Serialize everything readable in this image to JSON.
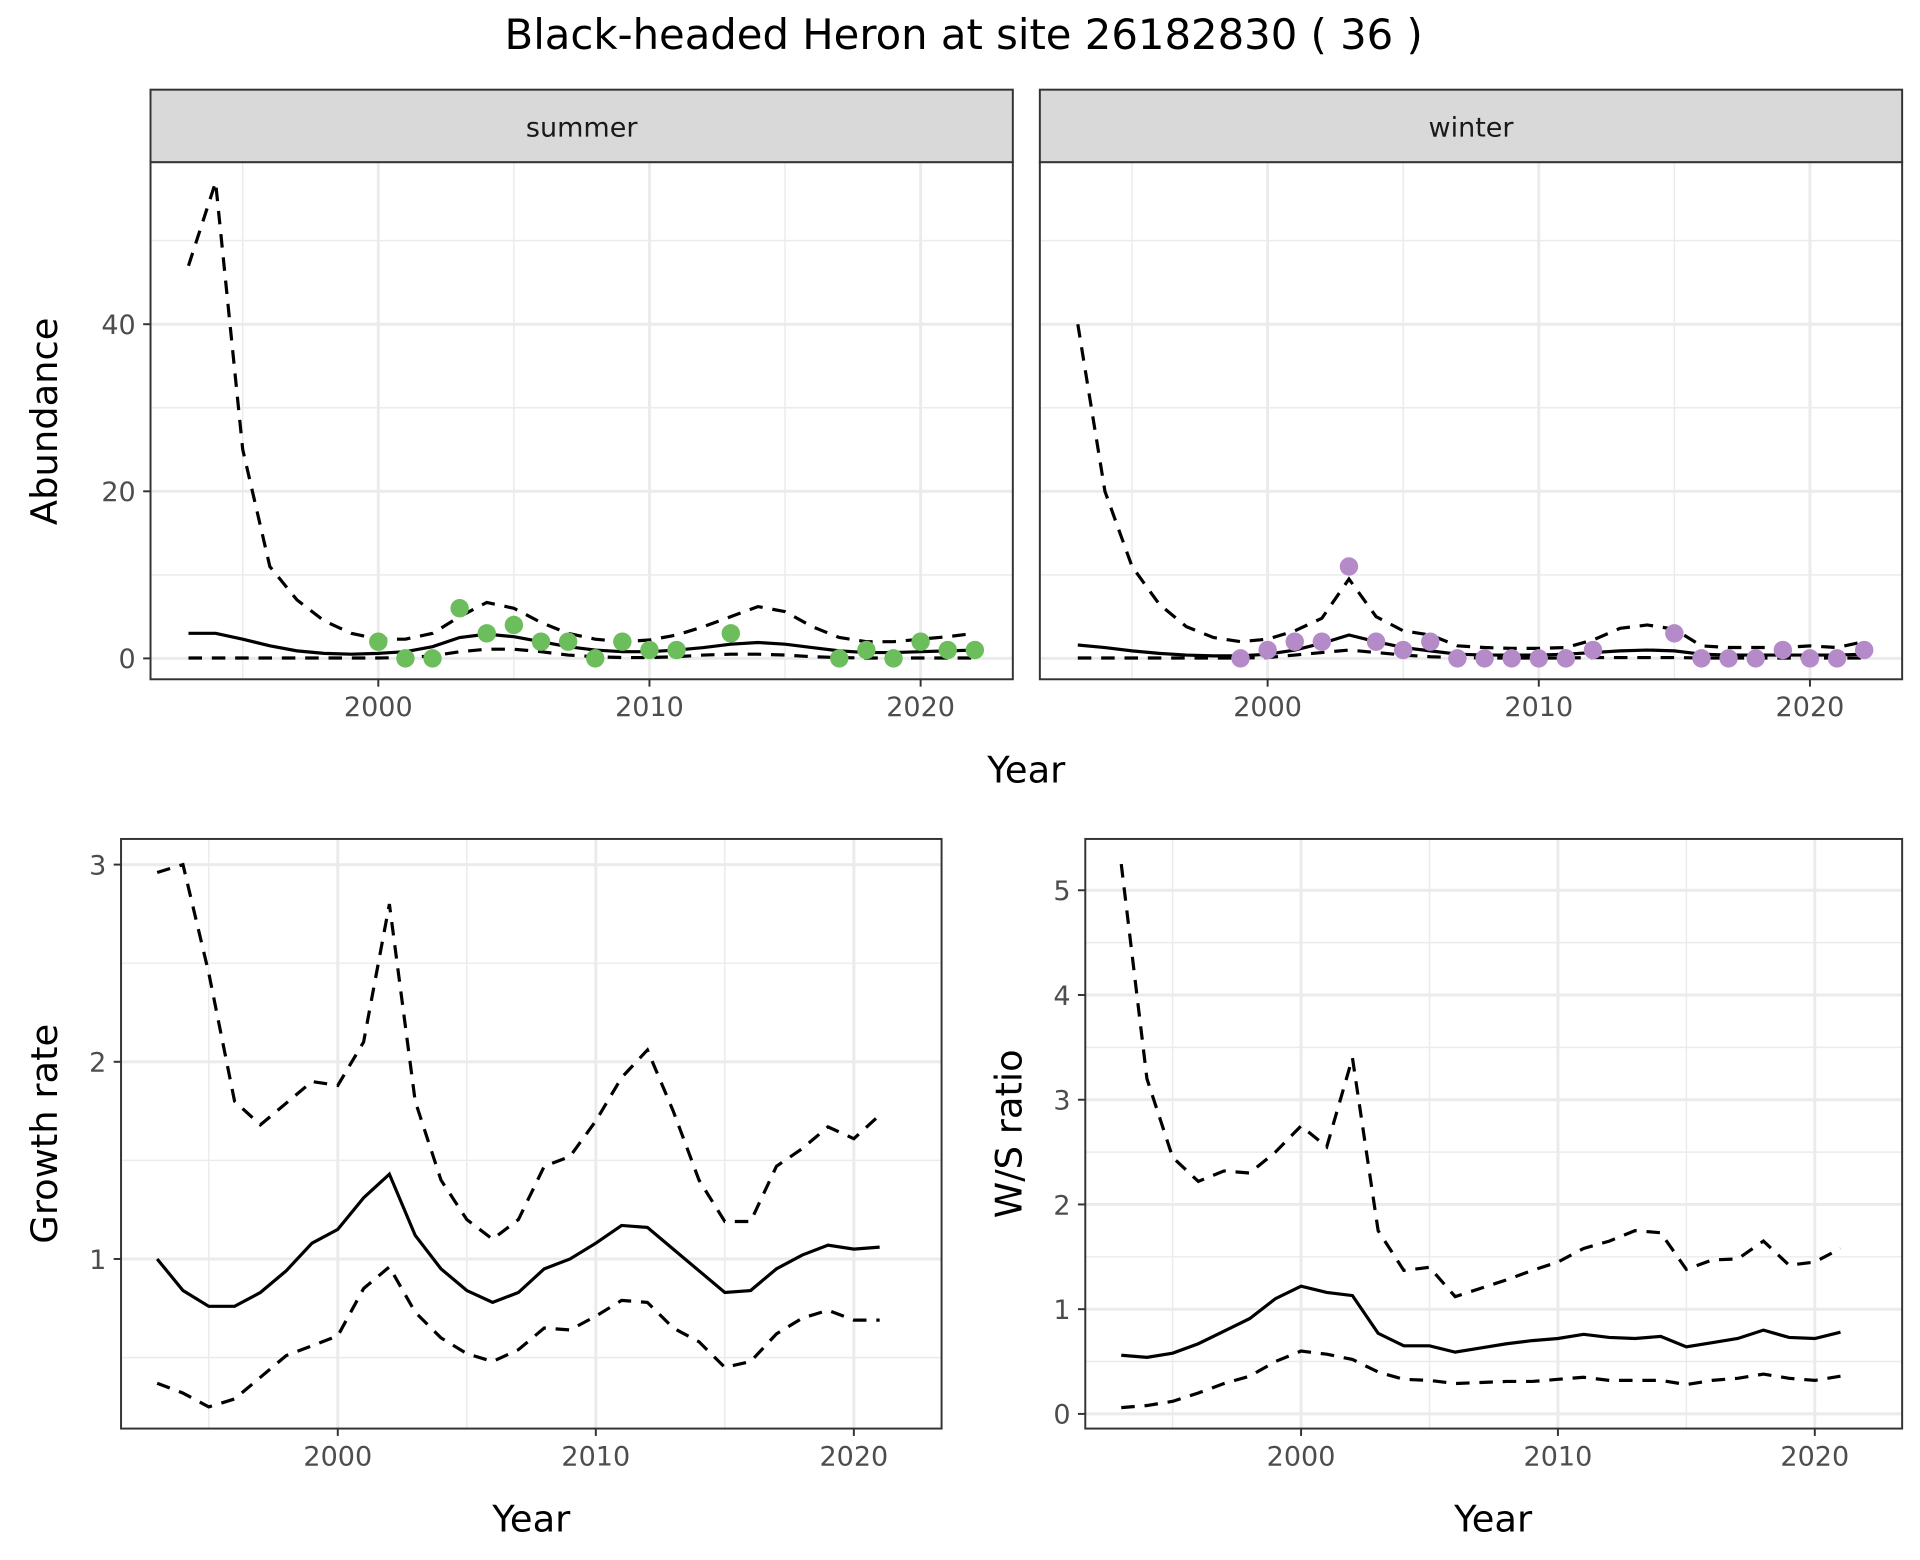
{
  "title": "Black-headed Heron at site 26182830 ( 36 )",
  "colors": {
    "summer": "#6cbd5b",
    "winter": "#b48ac8",
    "line": "#000000",
    "grid": "#ebebeb",
    "strip": "#d9d9d9"
  },
  "chart_data": [
    {
      "type": "line",
      "xlabel": "Year",
      "ylabel": "Abundance",
      "xlim": [
        1991.6,
        2023.4
      ],
      "ylim": [
        -2.5,
        59.4
      ],
      "xticks": [
        2000,
        2010,
        2020
      ],
      "yticks": [
        0,
        20,
        40
      ],
      "grid": true,
      "facets": [
        {
          "label": "summer",
          "point_color": "summer",
          "points": {
            "x": [
              2000,
              2001,
              2002,
              2003,
              2004,
              2005,
              2006,
              2007,
              2008,
              2009,
              2010,
              2011,
              2013,
              2017,
              2018,
              2019,
              2020,
              2021,
              2022
            ],
            "y": [
              2,
              0,
              0,
              6,
              3,
              4,
              2,
              2,
              0,
              2,
              1,
              1,
              3,
              0,
              1,
              0,
              2,
              1,
              1
            ]
          },
          "x": [
            1993,
            1994,
            1995,
            1996,
            1997,
            1998,
            1999,
            2000,
            2001,
            2002,
            2003,
            2004,
            2005,
            2006,
            2007,
            2008,
            2009,
            2010,
            2011,
            2012,
            2013,
            2014,
            2015,
            2016,
            2017,
            2018,
            2019,
            2020,
            2021,
            2022
          ],
          "lines": [
            {
              "style": "solid",
              "values": [
                3,
                3,
                2.3,
                1.5,
                0.9,
                0.6,
                0.5,
                0.6,
                0.8,
                1.4,
                2.5,
                2.9,
                2.6,
                2.0,
                1.4,
                1.0,
                0.8,
                0.8,
                1.0,
                1.3,
                1.7,
                1.9,
                1.7,
                1.3,
                0.9,
                0.7,
                0.7,
                0.8,
                0.9,
                1.0
              ]
            },
            {
              "style": "dashed",
              "values": [
                47,
                57,
                25,
                11,
                7,
                4.5,
                3,
                2.3,
                2.3,
                3,
                5,
                6.7,
                6,
                4.3,
                3,
                2.3,
                2,
                2.2,
                2.8,
                3.8,
                5,
                6.2,
                5.6,
                3.8,
                2.5,
                2,
                2,
                2.3,
                2.6,
                3
              ]
            },
            {
              "style": "dashed",
              "values": [
                0.05,
                0.05,
                0.05,
                0.05,
                0.05,
                0.05,
                0.05,
                0.05,
                0.1,
                0.3,
                0.8,
                1.1,
                1.1,
                0.8,
                0.4,
                0.2,
                0.1,
                0.1,
                0.2,
                0.4,
                0.5,
                0.5,
                0.4,
                0.2,
                0.1,
                0.05,
                0.05,
                0.05,
                0.05,
                0.05
              ]
            }
          ]
        },
        {
          "label": "winter",
          "point_color": "winter",
          "points": {
            "x": [
              1999,
              2000,
              2001,
              2002,
              2003,
              2004,
              2005,
              2006,
              2007,
              2008,
              2009,
              2010,
              2011,
              2012,
              2015,
              2016,
              2017,
              2018,
              2019,
              2020,
              2021,
              2022
            ],
            "y": [
              0,
              1,
              2,
              2,
              11,
              2,
              1,
              2,
              0,
              0,
              0,
              0,
              0,
              1,
              3,
              0,
              0,
              0,
              1,
              0,
              0,
              1
            ]
          },
          "x": [
            1993,
            1994,
            1995,
            1996,
            1997,
            1998,
            1999,
            2000,
            2001,
            2002,
            2003,
            2004,
            2005,
            2006,
            2007,
            2008,
            2009,
            2010,
            2011,
            2012,
            2013,
            2014,
            2015,
            2016,
            2017,
            2018,
            2019,
            2020,
            2021,
            2022
          ],
          "lines": [
            {
              "style": "solid",
              "values": [
                1.6,
                1.3,
                0.9,
                0.6,
                0.4,
                0.3,
                0.3,
                0.5,
                1,
                1.8,
                2.8,
                2,
                1.3,
                0.9,
                0.5,
                0.4,
                0.4,
                0.4,
                0.5,
                0.7,
                0.9,
                1,
                0.9,
                0.5,
                0.4,
                0.4,
                0.4,
                0.4,
                0.4,
                0.5
              ]
            },
            {
              "style": "dashed",
              "values": [
                40,
                20,
                11,
                6.5,
                3.8,
                2.5,
                2,
                2.3,
                3.3,
                4.8,
                9.5,
                5,
                3.3,
                2.8,
                1.5,
                1.3,
                1.2,
                1.2,
                1.3,
                2.2,
                3.6,
                4,
                3.5,
                1.5,
                1.3,
                1.3,
                1.3,
                1.5,
                1.3,
                2
              ]
            },
            {
              "style": "dashed",
              "values": [
                0.05,
                0.05,
                0.05,
                0.05,
                0.05,
                0.05,
                0.05,
                0.1,
                0.4,
                0.7,
                1,
                0.7,
                0.4,
                0.2,
                0.1,
                0.05,
                0.05,
                0.05,
                0.05,
                0.1,
                0.1,
                0.1,
                0.1,
                0.05,
                0.05,
                0.05,
                0.05,
                0.05,
                0.05,
                0.05
              ]
            }
          ]
        }
      ]
    },
    {
      "type": "line",
      "xlabel": "Year",
      "ylabel": "Growth rate",
      "xlim": [
        1991.6,
        2023.4
      ],
      "ylim": [
        0.14,
        3.13
      ],
      "xticks": [
        2000,
        2010,
        2020
      ],
      "yticks": [
        1,
        2,
        3
      ],
      "grid": true,
      "x": [
        1993,
        1994,
        1995,
        1996,
        1997,
        1998,
        1999,
        2000,
        2001,
        2002,
        2003,
        2004,
        2005,
        2006,
        2007,
        2008,
        2009,
        2010,
        2011,
        2012,
        2013,
        2014,
        2015,
        2016,
        2017,
        2018,
        2019,
        2020,
        2021
      ],
      "lines": [
        {
          "style": "solid",
          "values": [
            1.0,
            0.84,
            0.76,
            0.76,
            0.83,
            0.94,
            1.08,
            1.15,
            1.31,
            1.43,
            1.12,
            0.95,
            0.84,
            0.78,
            0.83,
            0.95,
            1.0,
            1.08,
            1.17,
            1.16,
            1.05,
            0.94,
            0.83,
            0.84,
            0.95,
            1.02,
            1.07,
            1.05,
            1.06
          ]
        },
        {
          "style": "dashed",
          "values": [
            2.96,
            3.0,
            2.45,
            1.8,
            1.68,
            1.79,
            1.9,
            1.88,
            2.1,
            2.8,
            1.8,
            1.4,
            1.2,
            1.1,
            1.2,
            1.47,
            1.52,
            1.7,
            1.92,
            2.06,
            1.75,
            1.4,
            1.19,
            1.19,
            1.47,
            1.56,
            1.67,
            1.61,
            1.73
          ]
        },
        {
          "style": "dashed",
          "values": [
            0.37,
            0.32,
            0.25,
            0.29,
            0.4,
            0.51,
            0.56,
            0.61,
            0.85,
            0.96,
            0.73,
            0.6,
            0.52,
            0.48,
            0.54,
            0.65,
            0.64,
            0.71,
            0.79,
            0.78,
            0.65,
            0.58,
            0.45,
            0.48,
            0.62,
            0.7,
            0.74,
            0.69,
            0.69
          ]
        }
      ]
    },
    {
      "type": "line",
      "xlabel": "Year",
      "ylabel": "W/S ratio",
      "xlim": [
        1991.6,
        2023.4
      ],
      "ylim": [
        -0.14,
        5.49
      ],
      "xticks": [
        2000,
        2010,
        2020
      ],
      "yticks": [
        0,
        1,
        2,
        3,
        4,
        5
      ],
      "grid": true,
      "x": [
        1993,
        1994,
        1995,
        1996,
        1997,
        1998,
        1999,
        2000,
        2001,
        2002,
        2003,
        2004,
        2005,
        2006,
        2007,
        2008,
        2009,
        2010,
        2011,
        2012,
        2013,
        2014,
        2015,
        2016,
        2017,
        2018,
        2019,
        2020,
        2021
      ],
      "lines": [
        {
          "style": "solid",
          "values": [
            0.56,
            0.54,
            0.58,
            0.67,
            0.79,
            0.91,
            1.1,
            1.22,
            1.16,
            1.13,
            0.77,
            0.65,
            0.65,
            0.59,
            0.63,
            0.67,
            0.7,
            0.72,
            0.76,
            0.73,
            0.72,
            0.74,
            0.64,
            0.68,
            0.72,
            0.8,
            0.73,
            0.72,
            0.78
          ]
        },
        {
          "style": "dashed",
          "values": [
            5.25,
            3.2,
            2.45,
            2.22,
            2.32,
            2.3,
            2.5,
            2.75,
            2.55,
            3.4,
            1.75,
            1.37,
            1.4,
            1.12,
            1.2,
            1.28,
            1.37,
            1.45,
            1.58,
            1.65,
            1.75,
            1.73,
            1.38,
            1.47,
            1.48,
            1.65,
            1.42,
            1.45,
            1.58
          ]
        },
        {
          "style": "dashed",
          "values": [
            0.06,
            0.08,
            0.12,
            0.2,
            0.29,
            0.36,
            0.5,
            0.6,
            0.57,
            0.52,
            0.4,
            0.33,
            0.32,
            0.29,
            0.3,
            0.31,
            0.31,
            0.33,
            0.35,
            0.32,
            0.32,
            0.32,
            0.28,
            0.32,
            0.34,
            0.38,
            0.34,
            0.32,
            0.36
          ]
        }
      ]
    }
  ]
}
